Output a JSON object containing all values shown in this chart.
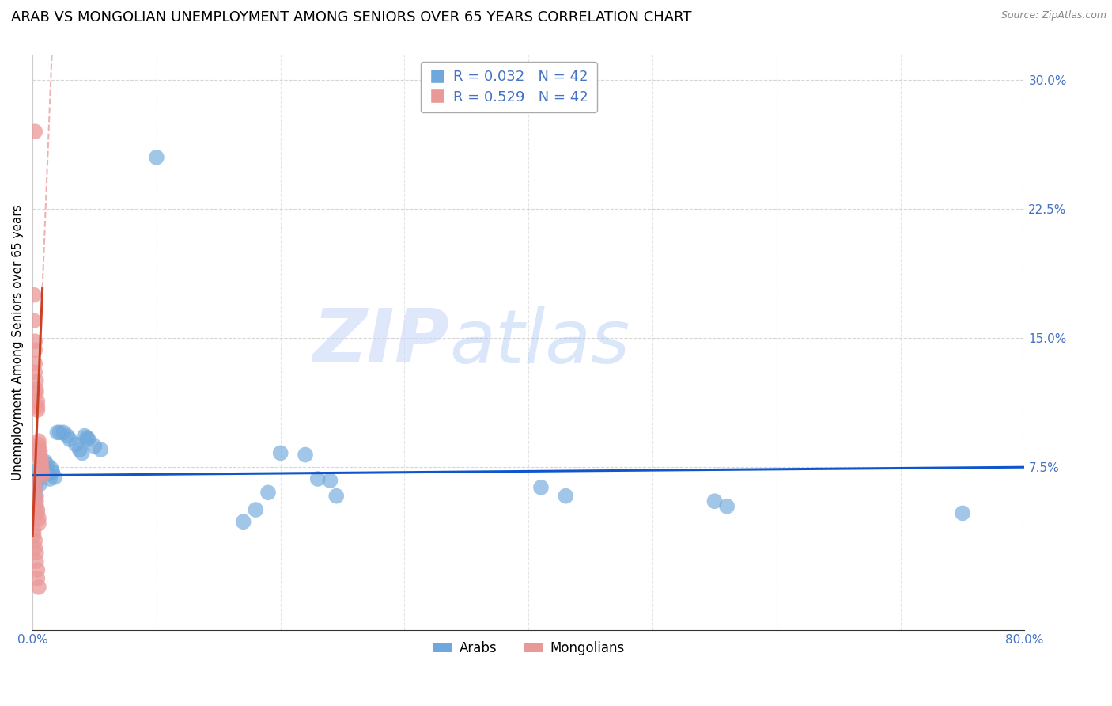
{
  "title": "ARAB VS MONGOLIAN UNEMPLOYMENT AMONG SENIORS OVER 65 YEARS CORRELATION CHART",
  "source": "Source: ZipAtlas.com",
  "ylabel": "Unemployment Among Seniors over 65 years",
  "xlim": [
    0.0,
    0.8
  ],
  "ylim": [
    -0.02,
    0.315
  ],
  "yticks": [
    0.075,
    0.15,
    0.225,
    0.3
  ],
  "ytick_labels": [
    "7.5%",
    "15.0%",
    "22.5%",
    "30.0%"
  ],
  "xticks": [
    0.0,
    0.1,
    0.2,
    0.3,
    0.4,
    0.5,
    0.6,
    0.7,
    0.8
  ],
  "xtick_labels": [
    "0.0%",
    "",
    "",
    "",
    "",
    "",
    "",
    "",
    "80.0%"
  ],
  "arab_color": "#6fa8dc",
  "mongol_color": "#ea9999",
  "arab_scatter": [
    [
      0.004,
      0.073
    ],
    [
      0.005,
      0.068
    ],
    [
      0.006,
      0.065
    ],
    [
      0.007,
      0.072
    ],
    [
      0.008,
      0.07
    ],
    [
      0.009,
      0.075
    ],
    [
      0.01,
      0.078
    ],
    [
      0.012,
      0.076
    ],
    [
      0.013,
      0.071
    ],
    [
      0.014,
      0.068
    ],
    [
      0.015,
      0.074
    ],
    [
      0.016,
      0.072
    ],
    [
      0.018,
      0.069
    ],
    [
      0.02,
      0.095
    ],
    [
      0.022,
      0.095
    ],
    [
      0.025,
      0.095
    ],
    [
      0.028,
      0.093
    ],
    [
      0.03,
      0.091
    ],
    [
      0.035,
      0.088
    ],
    [
      0.038,
      0.085
    ],
    [
      0.04,
      0.083
    ],
    [
      0.042,
      0.093
    ],
    [
      0.044,
      0.092
    ],
    [
      0.045,
      0.091
    ],
    [
      0.05,
      0.087
    ],
    [
      0.055,
      0.085
    ],
    [
      0.1,
      0.255
    ],
    [
      0.2,
      0.083
    ],
    [
      0.22,
      0.082
    ],
    [
      0.23,
      0.068
    ],
    [
      0.24,
      0.067
    ],
    [
      0.245,
      0.058
    ],
    [
      0.19,
      0.06
    ],
    [
      0.17,
      0.043
    ],
    [
      0.18,
      0.05
    ],
    [
      0.41,
      0.063
    ],
    [
      0.43,
      0.058
    ],
    [
      0.55,
      0.055
    ],
    [
      0.56,
      0.052
    ],
    [
      0.75,
      0.048
    ],
    [
      0.002,
      0.063
    ],
    [
      0.003,
      0.058
    ]
  ],
  "mongol_scatter": [
    [
      0.002,
      0.27
    ],
    [
      0.001,
      0.175
    ],
    [
      0.001,
      0.16
    ],
    [
      0.002,
      0.148
    ],
    [
      0.002,
      0.143
    ],
    [
      0.002,
      0.135
    ],
    [
      0.002,
      0.13
    ],
    [
      0.003,
      0.125
    ],
    [
      0.003,
      0.12
    ],
    [
      0.003,
      0.118
    ],
    [
      0.004,
      0.113
    ],
    [
      0.004,
      0.11
    ],
    [
      0.004,
      0.108
    ],
    [
      0.005,
      0.09
    ],
    [
      0.005,
      0.088
    ],
    [
      0.005,
      0.086
    ],
    [
      0.006,
      0.084
    ],
    [
      0.006,
      0.082
    ],
    [
      0.006,
      0.08
    ],
    [
      0.007,
      0.078
    ],
    [
      0.007,
      0.076
    ],
    [
      0.007,
      0.074
    ],
    [
      0.008,
      0.072
    ],
    [
      0.008,
      0.07
    ],
    [
      0.001,
      0.065
    ],
    [
      0.002,
      0.062
    ],
    [
      0.002,
      0.058
    ],
    [
      0.003,
      0.055
    ],
    [
      0.003,
      0.052
    ],
    [
      0.004,
      0.05
    ],
    [
      0.004,
      0.048
    ],
    [
      0.005,
      0.045
    ],
    [
      0.005,
      0.042
    ],
    [
      0.001,
      0.038
    ],
    [
      0.001,
      0.035
    ],
    [
      0.002,
      0.032
    ],
    [
      0.002,
      0.028
    ],
    [
      0.003,
      0.025
    ],
    [
      0.003,
      0.02
    ],
    [
      0.004,
      0.015
    ],
    [
      0.004,
      0.01
    ],
    [
      0.005,
      0.005
    ]
  ],
  "arab_R": 0.032,
  "arab_N": 42,
  "mongol_R": 0.529,
  "mongol_N": 42,
  "arab_line_color": "#1155cc",
  "mongol_line_color": "#cc4125",
  "mongol_line_dashed_color": "#e06666",
  "arab_line_slope": 0.006,
  "arab_line_intercept": 0.07,
  "mongol_line_slope": 18.0,
  "mongol_line_intercept": 0.035,
  "title_fontsize": 13,
  "axis_label_fontsize": 11,
  "tick_fontsize": 11,
  "tick_color": "#4472c4",
  "background_color": "#ffffff",
  "grid_color": "#cccccc",
  "watermark_zip": "ZIP",
  "watermark_atlas": "atlas"
}
